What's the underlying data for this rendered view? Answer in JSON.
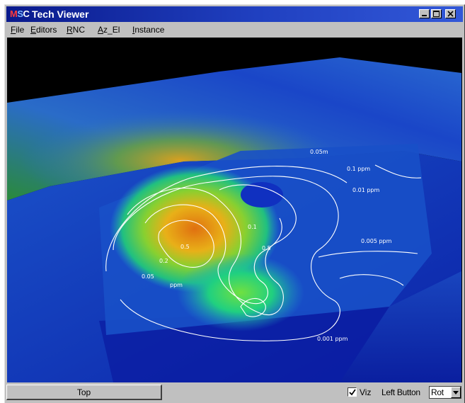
{
  "window": {
    "title_logo": {
      "m": "M",
      "s": "S",
      "c": "C"
    },
    "title": "Tech Viewer"
  },
  "menu": [
    "File",
    "Editors",
    "RNC",
    "Az_El",
    "Instance"
  ],
  "viewport": {
    "contour_labels": [
      "0.05m",
      "0.1 ppm",
      "0.01 ppm",
      "0.005 ppm",
      "0.001 ppm",
      "0.5",
      "0.2",
      "0.05",
      "0.1",
      "0.5",
      "ppm"
    ]
  },
  "statusbar": {
    "view_button": "Top",
    "viz_checked": true,
    "viz_label": "Viz",
    "left_button_label": "Left Button",
    "mode_value": "Rot"
  },
  "colors": {
    "title_gradient_start": "#0a1a8c",
    "title_gradient_end": "#3258d8",
    "chrome": "#c0c0c0",
    "viewport_bg": "#000000"
  },
  "icons": {
    "minimize": "minimize-icon",
    "maximize": "maximize-icon",
    "close": "close-icon",
    "dropdown": "chevron-down-icon",
    "checkbox": "checkmark-icon"
  }
}
